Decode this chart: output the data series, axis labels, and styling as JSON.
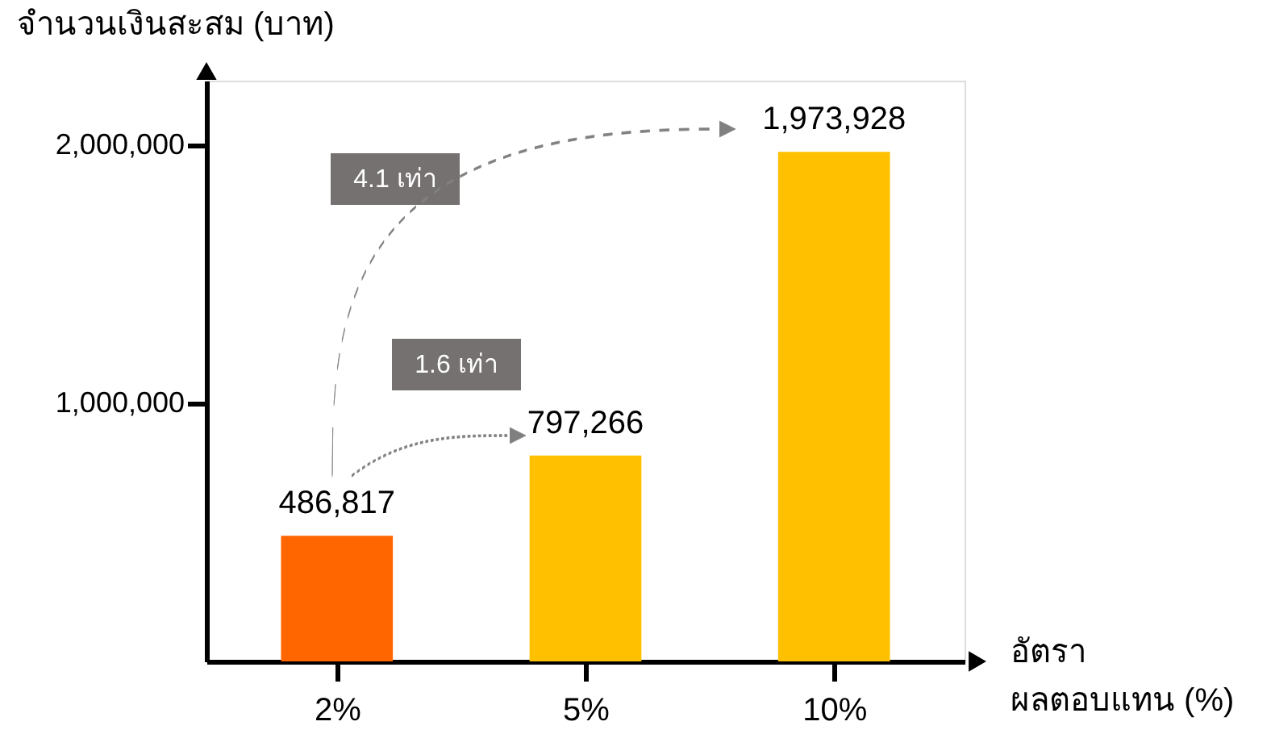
{
  "chart_data": {
    "type": "bar",
    "ylabel": "จำนวนเงินสะสม (บาท)",
    "xlabel": "อัตรา\nผลตอบแทน (%)",
    "categories": [
      "2%",
      "5%",
      "10%"
    ],
    "values": [
      486817,
      797266,
      1973928
    ],
    "value_labels": [
      "486,817",
      "797,266",
      "1,973,928"
    ],
    "colors": [
      "#ff6600",
      "#ffc000",
      "#ffc000"
    ],
    "ylim": [
      0,
      2250000
    ],
    "yticks": [
      {
        "value": 1000000,
        "label": "1,000,000"
      },
      {
        "value": 2000000,
        "label": "2,000,000"
      }
    ],
    "grid": false,
    "annotations": [
      "4.1 เท่า",
      "1.6 เท่า"
    ]
  }
}
